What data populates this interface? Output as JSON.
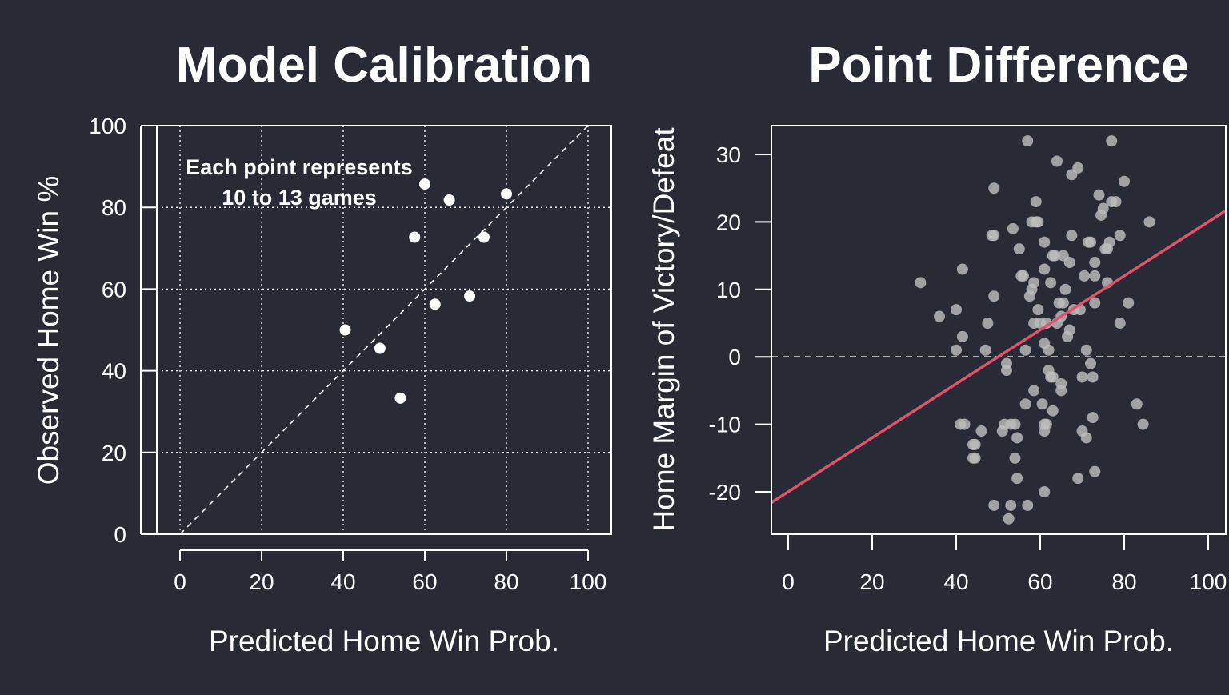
{
  "colors": {
    "background": "#282a36",
    "foreground": "#ffffff",
    "point_left": "#ffffff",
    "point_right": "#bdbdbd",
    "regression_line": "#df536b"
  },
  "chart_data": [
    {
      "type": "scatter",
      "title": "Model Calibration",
      "xlabel": "Predicted Home Win Prob.",
      "ylabel": "Observed Home Win %",
      "xlim": [
        0,
        100
      ],
      "ylim": [
        0,
        100
      ],
      "xticks": [
        0,
        20,
        40,
        60,
        80,
        100
      ],
      "yticks": [
        0,
        20,
        40,
        60,
        80,
        100
      ],
      "grid": true,
      "reference_line": "y = x (dashed)",
      "annotation": [
        "Each point represents",
        "10 to 13 games"
      ],
      "points": [
        {
          "x": 40.5,
          "y": 50.0
        },
        {
          "x": 49.0,
          "y": 45.5
        },
        {
          "x": 54.0,
          "y": 33.3
        },
        {
          "x": 57.5,
          "y": 72.7
        },
        {
          "x": 60.0,
          "y": 85.7
        },
        {
          "x": 62.5,
          "y": 56.3
        },
        {
          "x": 66.0,
          "y": 81.8
        },
        {
          "x": 71.0,
          "y": 58.3
        },
        {
          "x": 74.5,
          "y": 72.7
        },
        {
          "x": 80.0,
          "y": 83.3
        }
      ]
    },
    {
      "type": "scatter",
      "title": "Point Difference",
      "xlabel": "Predicted Home Win Prob.",
      "ylabel": "Home Margin of Victory/Defeat",
      "xlim": [
        0,
        100
      ],
      "ylim": [
        -25,
        33
      ],
      "xticks": [
        0,
        20,
        40,
        60,
        80,
        100
      ],
      "yticks": [
        -20,
        -10,
        0,
        10,
        20,
        30
      ],
      "grid": false,
      "reference_line": "y = 0 (dashed)",
      "regression_line": {
        "intercept": -20,
        "slope": 0.4
      },
      "points": [
        {
          "x": 31.5,
          "y": 11
        },
        {
          "x": 36,
          "y": 6
        },
        {
          "x": 40,
          "y": 7
        },
        {
          "x": 40,
          "y": 1
        },
        {
          "x": 41,
          "y": -10
        },
        {
          "x": 41.5,
          "y": 3
        },
        {
          "x": 41.5,
          "y": 13
        },
        {
          "x": 42,
          "y": -10
        },
        {
          "x": 44,
          "y": -13
        },
        {
          "x": 44,
          "y": -15
        },
        {
          "x": 44.5,
          "y": -13
        },
        {
          "x": 44.5,
          "y": -15
        },
        {
          "x": 46,
          "y": -11
        },
        {
          "x": 47,
          "y": 1
        },
        {
          "x": 47.5,
          "y": 5
        },
        {
          "x": 48.5,
          "y": 18
        },
        {
          "x": 49,
          "y": 25
        },
        {
          "x": 49,
          "y": 18
        },
        {
          "x": 49,
          "y": 9
        },
        {
          "x": 49,
          "y": -22
        },
        {
          "x": 51,
          "y": -11
        },
        {
          "x": 51.5,
          "y": -10
        },
        {
          "x": 52,
          "y": -1
        },
        {
          "x": 52,
          "y": -2
        },
        {
          "x": 52.5,
          "y": -24
        },
        {
          "x": 53,
          "y": -10
        },
        {
          "x": 53,
          "y": -22
        },
        {
          "x": 53.5,
          "y": 19
        },
        {
          "x": 54,
          "y": -10
        },
        {
          "x": 54,
          "y": -15
        },
        {
          "x": 54.5,
          "y": -18
        },
        {
          "x": 54.5,
          "y": -12
        },
        {
          "x": 55,
          "y": 16
        },
        {
          "x": 55.5,
          "y": 12
        },
        {
          "x": 56,
          "y": 12
        },
        {
          "x": 56.5,
          "y": 1
        },
        {
          "x": 56.5,
          "y": -7
        },
        {
          "x": 57,
          "y": -22
        },
        {
          "x": 57.5,
          "y": 9
        },
        {
          "x": 58,
          "y": 10
        },
        {
          "x": 58,
          "y": 20
        },
        {
          "x": 58.5,
          "y": 11
        },
        {
          "x": 58.5,
          "y": 5
        },
        {
          "x": 58.5,
          "y": -5
        },
        {
          "x": 59,
          "y": 23
        },
        {
          "x": 59,
          "y": 20
        },
        {
          "x": 59.5,
          "y": 20
        },
        {
          "x": 59.5,
          "y": 7
        },
        {
          "x": 60,
          "y": 5
        },
        {
          "x": 60.5,
          "y": -7
        },
        {
          "x": 61,
          "y": 17
        },
        {
          "x": 61,
          "y": 13
        },
        {
          "x": 61,
          "y": 2
        },
        {
          "x": 61,
          "y": -10
        },
        {
          "x": 61,
          "y": -11
        },
        {
          "x": 61,
          "y": -20
        },
        {
          "x": 61.5,
          "y": 5
        },
        {
          "x": 61.5,
          "y": -10
        },
        {
          "x": 62,
          "y": 1
        },
        {
          "x": 62,
          "y": -2
        },
        {
          "x": 62.5,
          "y": 11
        },
        {
          "x": 62.5,
          "y": -3
        },
        {
          "x": 63,
          "y": 15
        },
        {
          "x": 63,
          "y": -3
        },
        {
          "x": 63,
          "y": -8
        },
        {
          "x": 63.5,
          "y": 15
        },
        {
          "x": 64,
          "y": 29
        },
        {
          "x": 64,
          "y": 5
        },
        {
          "x": 64.5,
          "y": 8
        },
        {
          "x": 65,
          "y": 6
        },
        {
          "x": 65,
          "y": -4
        },
        {
          "x": 65,
          "y": -5
        },
        {
          "x": 65.5,
          "y": 15
        },
        {
          "x": 65.5,
          "y": 8
        },
        {
          "x": 66,
          "y": 10
        },
        {
          "x": 66.5,
          "y": 3
        },
        {
          "x": 67,
          "y": 4
        },
        {
          "x": 67,
          "y": 14
        },
        {
          "x": 67.5,
          "y": 18
        },
        {
          "x": 67.5,
          "y": 27
        },
        {
          "x": 68,
          "y": 7
        },
        {
          "x": 69,
          "y": 28
        },
        {
          "x": 69,
          "y": -18
        },
        {
          "x": 69.5,
          "y": 7
        },
        {
          "x": 70,
          "y": -11
        },
        {
          "x": 70,
          "y": -3
        },
        {
          "x": 70.5,
          "y": 12
        },
        {
          "x": 71,
          "y": 1
        },
        {
          "x": 71,
          "y": -12
        },
        {
          "x": 71.5,
          "y": 17
        },
        {
          "x": 72,
          "y": 17
        },
        {
          "x": 72,
          "y": -1
        },
        {
          "x": 72.5,
          "y": -3
        },
        {
          "x": 72.5,
          "y": -9
        },
        {
          "x": 73,
          "y": -17
        },
        {
          "x": 73,
          "y": 14
        },
        {
          "x": 73,
          "y": 12
        },
        {
          "x": 73,
          "y": 8
        },
        {
          "x": 74,
          "y": 24
        },
        {
          "x": 74.5,
          "y": 21
        },
        {
          "x": 75,
          "y": 22
        },
        {
          "x": 75.5,
          "y": 16
        },
        {
          "x": 76,
          "y": 16
        },
        {
          "x": 76,
          "y": 11
        },
        {
          "x": 76.5,
          "y": 17
        },
        {
          "x": 77,
          "y": 32
        },
        {
          "x": 77,
          "y": 23
        },
        {
          "x": 78,
          "y": 23
        },
        {
          "x": 79,
          "y": 18
        },
        {
          "x": 79,
          "y": 5
        },
        {
          "x": 80,
          "y": 26
        },
        {
          "x": 81,
          "y": 8
        },
        {
          "x": 83,
          "y": -7
        },
        {
          "x": 84.5,
          "y": -10
        },
        {
          "x": 86,
          "y": 20
        },
        {
          "x": 57,
          "y": 32
        }
      ]
    }
  ]
}
